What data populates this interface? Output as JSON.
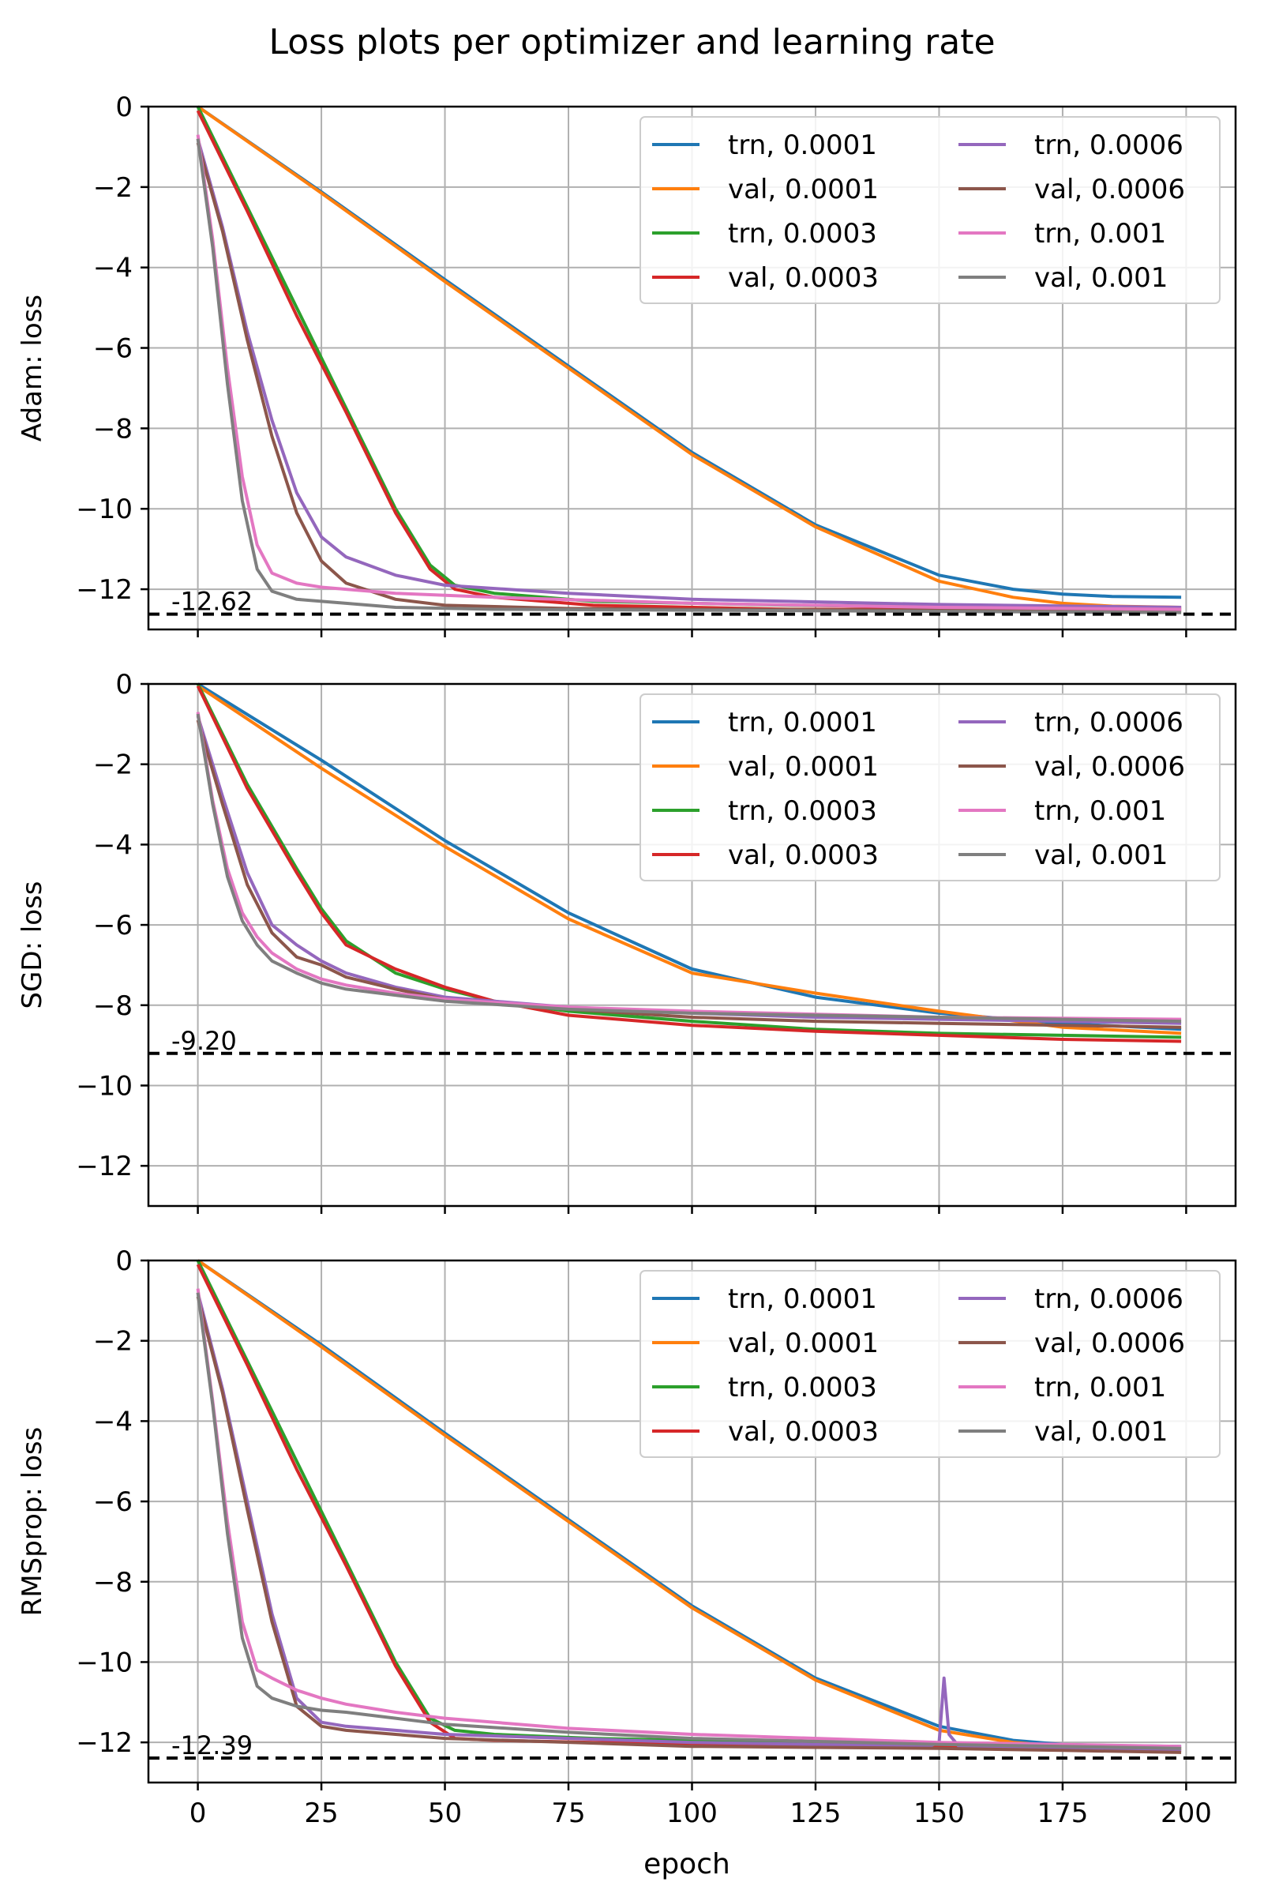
{
  "figure_title": "Loss plots per optimizer and learning rate",
  "colors": {
    "trn_0.0001": "#1f77b4",
    "val_0.0001": "#ff7f0e",
    "trn_0.0003": "#2ca02c",
    "val_0.0003": "#d62728",
    "trn_0.0006": "#9467bd",
    "val_0.0006": "#8c564b",
    "trn_0.001": "#e377c2",
    "val_0.001": "#7f7f7f"
  },
  "chart_data": [
    {
      "type": "line",
      "ylabel": "Adam: loss",
      "xlabel": "",
      "xlim": [
        -10,
        210
      ],
      "ylim": [
        -13,
        0
      ],
      "xticks": [
        0,
        25,
        50,
        75,
        100,
        125,
        150,
        175,
        200
      ],
      "yticks": [
        0,
        -2,
        -4,
        -6,
        -8,
        -10,
        -12
      ],
      "xticklabels_visible": false,
      "grid": true,
      "legend_location": "top-right",
      "reference_line": {
        "y": -12.62,
        "label": "-12.62",
        "style": "dashed black"
      },
      "series": [
        {
          "name": "trn, 0.0001",
          "x": [
            0,
            25,
            50,
            75,
            100,
            125,
            150,
            165,
            175,
            185,
            199
          ],
          "y": [
            0,
            -2.12,
            -4.3,
            -6.45,
            -8.6,
            -10.4,
            -11.65,
            -12.0,
            -12.12,
            -12.18,
            -12.2
          ]
        },
        {
          "name": "val, 0.0001",
          "x": [
            0,
            25,
            50,
            75,
            100,
            125,
            150,
            165,
            175,
            185,
            199
          ],
          "y": [
            0,
            -2.15,
            -4.35,
            -6.5,
            -8.65,
            -10.45,
            -11.8,
            -12.2,
            -12.35,
            -12.42,
            -12.45
          ]
        },
        {
          "name": "trn, 0.0003",
          "x": [
            0,
            10,
            20,
            30,
            40,
            47,
            52,
            60,
            80,
            120,
            160,
            199
          ],
          "y": [
            0,
            -2.5,
            -5.0,
            -7.5,
            -10.0,
            -11.4,
            -11.9,
            -12.1,
            -12.3,
            -12.4,
            -12.45,
            -12.48
          ]
        },
        {
          "name": "val, 0.0003",
          "x": [
            0,
            10,
            20,
            30,
            40,
            47,
            52,
            60,
            80,
            120,
            160,
            199
          ],
          "y": [
            -0.1,
            -2.6,
            -5.2,
            -7.6,
            -10.1,
            -11.5,
            -12.0,
            -12.2,
            -12.4,
            -12.5,
            -12.5,
            -12.52
          ]
        },
        {
          "name": "trn, 0.0006",
          "x": [
            0,
            5,
            10,
            15,
            20,
            25,
            30,
            40,
            50,
            75,
            100,
            150,
            199
          ],
          "y": [
            -0.8,
            -3.0,
            -5.6,
            -7.8,
            -9.6,
            -10.7,
            -11.2,
            -11.65,
            -11.9,
            -12.1,
            -12.25,
            -12.38,
            -12.45
          ]
        },
        {
          "name": "val, 0.0006",
          "x": [
            0,
            5,
            10,
            15,
            20,
            25,
            30,
            40,
            50,
            75,
            100,
            150,
            199
          ],
          "y": [
            -0.9,
            -3.1,
            -5.8,
            -8.2,
            -10.1,
            -11.3,
            -11.85,
            -12.25,
            -12.4,
            -12.48,
            -12.5,
            -12.52,
            -12.55
          ]
        },
        {
          "name": "trn, 0.001",
          "x": [
            0,
            3,
            6,
            9,
            12,
            15,
            20,
            25,
            30,
            40,
            60,
            100,
            150,
            199
          ],
          "y": [
            -0.7,
            -3.3,
            -6.5,
            -9.2,
            -10.9,
            -11.6,
            -11.85,
            -11.95,
            -12.0,
            -12.1,
            -12.2,
            -12.35,
            -12.45,
            -12.5
          ]
        },
        {
          "name": "val, 0.001",
          "x": [
            0,
            3,
            6,
            9,
            12,
            15,
            20,
            25,
            30,
            40,
            60,
            100,
            150,
            199
          ],
          "y": [
            -0.8,
            -3.5,
            -6.9,
            -9.8,
            -11.5,
            -12.05,
            -12.25,
            -12.3,
            -12.35,
            -12.45,
            -12.5,
            -12.52,
            -12.55,
            -12.58
          ]
        }
      ]
    },
    {
      "type": "line",
      "ylabel": "SGD: loss",
      "xlabel": "",
      "xlim": [
        -10,
        210
      ],
      "ylim": [
        -13,
        0
      ],
      "xticks": [
        0,
        25,
        50,
        75,
        100,
        125,
        150,
        175,
        200
      ],
      "yticks": [
        0,
        -2,
        -4,
        -6,
        -8,
        -10,
        -12
      ],
      "xticklabels_visible": false,
      "grid": true,
      "legend_location": "top-right",
      "reference_line": {
        "y": -9.2,
        "label": "-9.20",
        "style": "dashed black"
      },
      "series": [
        {
          "name": "trn, 0.0001",
          "x": [
            0,
            25,
            50,
            75,
            100,
            125,
            150,
            175,
            199
          ],
          "y": [
            0,
            -1.9,
            -3.9,
            -5.7,
            -7.1,
            -7.8,
            -8.2,
            -8.45,
            -8.6
          ]
        },
        {
          "name": "val, 0.0001",
          "x": [
            0,
            25,
            50,
            75,
            100,
            125,
            150,
            175,
            199
          ],
          "y": [
            -0.05,
            -2.1,
            -4.05,
            -5.85,
            -7.2,
            -7.7,
            -8.15,
            -8.55,
            -8.7
          ]
        },
        {
          "name": "trn, 0.0003",
          "x": [
            0,
            10,
            20,
            25,
            30,
            40,
            50,
            60,
            75,
            100,
            125,
            150,
            175,
            199
          ],
          "y": [
            0,
            -2.5,
            -4.6,
            -5.6,
            -6.4,
            -7.2,
            -7.6,
            -7.9,
            -8.15,
            -8.4,
            -8.6,
            -8.7,
            -8.75,
            -8.8
          ]
        },
        {
          "name": "val, 0.0003",
          "x": [
            0,
            10,
            20,
            25,
            30,
            40,
            50,
            60,
            75,
            100,
            125,
            150,
            175,
            199
          ],
          "y": [
            -0.05,
            -2.6,
            -4.7,
            -5.7,
            -6.5,
            -7.1,
            -7.55,
            -7.9,
            -8.25,
            -8.5,
            -8.65,
            -8.75,
            -8.85,
            -8.9
          ]
        },
        {
          "name": "trn, 0.0006",
          "x": [
            0,
            5,
            10,
            15,
            20,
            25,
            30,
            40,
            50,
            75,
            100,
            125,
            150,
            175,
            199
          ],
          "y": [
            -0.8,
            -2.8,
            -4.7,
            -6.0,
            -6.5,
            -6.9,
            -7.2,
            -7.55,
            -7.8,
            -8.05,
            -8.2,
            -8.3,
            -8.35,
            -8.4,
            -8.45
          ]
        },
        {
          "name": "val, 0.0006",
          "x": [
            0,
            5,
            10,
            15,
            20,
            25,
            30,
            40,
            50,
            75,
            100,
            125,
            150,
            175,
            199
          ],
          "y": [
            -0.9,
            -3.0,
            -5.0,
            -6.2,
            -6.8,
            -7.0,
            -7.3,
            -7.6,
            -7.85,
            -8.1,
            -8.3,
            -8.4,
            -8.45,
            -8.5,
            -8.55
          ]
        },
        {
          "name": "trn, 0.001",
          "x": [
            0,
            3,
            6,
            9,
            12,
            15,
            20,
            25,
            30,
            40,
            50,
            75,
            100,
            150,
            199
          ],
          "y": [
            -0.7,
            -2.9,
            -4.6,
            -5.7,
            -6.3,
            -6.7,
            -7.1,
            -7.35,
            -7.5,
            -7.7,
            -7.85,
            -8.05,
            -8.15,
            -8.3,
            -8.35
          ]
        },
        {
          "name": "val, 0.001",
          "x": [
            0,
            3,
            6,
            9,
            12,
            15,
            20,
            25,
            30,
            40,
            50,
            75,
            100,
            150,
            199
          ],
          "y": [
            -0.75,
            -3.0,
            -4.8,
            -5.9,
            -6.5,
            -6.9,
            -7.2,
            -7.45,
            -7.6,
            -7.75,
            -7.9,
            -8.1,
            -8.2,
            -8.3,
            -8.4
          ]
        }
      ]
    },
    {
      "type": "line",
      "ylabel": "RMSprop: loss",
      "xlabel": "epoch",
      "xlim": [
        -10,
        210
      ],
      "ylim": [
        -13,
        0
      ],
      "xticks": [
        0,
        25,
        50,
        75,
        100,
        125,
        150,
        175,
        200
      ],
      "yticks": [
        0,
        -2,
        -4,
        -6,
        -8,
        -10,
        -12
      ],
      "xticklabels_visible": true,
      "grid": true,
      "legend_location": "top-right",
      "reference_line": {
        "y": -12.39,
        "label": "-12.39",
        "style": "dashed black"
      },
      "series": [
        {
          "name": "trn, 0.0001",
          "x": [
            0,
            25,
            50,
            75,
            100,
            125,
            150,
            165,
            175,
            185,
            199
          ],
          "y": [
            0,
            -2.1,
            -4.3,
            -6.45,
            -8.6,
            -10.4,
            -11.6,
            -11.95,
            -12.05,
            -12.08,
            -12.1
          ]
        },
        {
          "name": "val, 0.0001",
          "x": [
            0,
            25,
            50,
            75,
            100,
            125,
            150,
            165,
            175,
            185,
            199
          ],
          "y": [
            0,
            -2.15,
            -4.35,
            -6.5,
            -8.65,
            -10.45,
            -11.7,
            -12.0,
            -12.1,
            -12.15,
            -12.15
          ]
        },
        {
          "name": "trn, 0.0003",
          "x": [
            0,
            10,
            20,
            30,
            40,
            47,
            52,
            60,
            80,
            120,
            160,
            199
          ],
          "y": [
            0,
            -2.5,
            -5.0,
            -7.5,
            -10.0,
            -11.4,
            -11.7,
            -11.8,
            -11.9,
            -12.0,
            -12.1,
            -12.15
          ]
        },
        {
          "name": "val, 0.0003",
          "x": [
            0,
            10,
            20,
            30,
            40,
            47,
            52,
            60,
            80,
            120,
            160,
            199
          ],
          "y": [
            -0.1,
            -2.6,
            -5.2,
            -7.6,
            -10.1,
            -11.5,
            -11.9,
            -11.95,
            -12.0,
            -12.05,
            -12.15,
            -12.2
          ]
        },
        {
          "name": "trn, 0.0006",
          "x": [
            0,
            5,
            10,
            15,
            20,
            25,
            30,
            40,
            50,
            100,
            148,
            150,
            151,
            152,
            154,
            175,
            199
          ],
          "y": [
            -0.8,
            -3.2,
            -6.0,
            -8.8,
            -10.9,
            -11.5,
            -11.6,
            -11.7,
            -11.8,
            -12.0,
            -12.1,
            -12.0,
            -10.4,
            -11.8,
            -12.1,
            -12.15,
            -12.2
          ]
        },
        {
          "name": "val, 0.0006",
          "x": [
            0,
            5,
            10,
            15,
            20,
            25,
            30,
            40,
            50,
            100,
            150,
            175,
            199
          ],
          "y": [
            -0.9,
            -3.3,
            -6.2,
            -9.0,
            -11.1,
            -11.6,
            -11.7,
            -11.8,
            -11.9,
            -12.1,
            -12.15,
            -12.2,
            -12.25
          ]
        },
        {
          "name": "trn, 0.001",
          "x": [
            0,
            3,
            6,
            9,
            12,
            15,
            20,
            25,
            30,
            40,
            50,
            75,
            100,
            150,
            199
          ],
          "y": [
            -0.7,
            -3.5,
            -6.5,
            -9.0,
            -10.2,
            -10.4,
            -10.7,
            -10.9,
            -11.05,
            -11.25,
            -11.4,
            -11.65,
            -11.8,
            -12.0,
            -12.1
          ]
        },
        {
          "name": "val, 0.001",
          "x": [
            0,
            3,
            6,
            9,
            12,
            15,
            20,
            25,
            30,
            40,
            50,
            75,
            100,
            150,
            199
          ],
          "y": [
            -0.8,
            -3.6,
            -6.8,
            -9.4,
            -10.6,
            -10.9,
            -11.1,
            -11.2,
            -11.25,
            -11.4,
            -11.55,
            -11.75,
            -11.9,
            -12.05,
            -12.15
          ]
        }
      ]
    }
  ]
}
